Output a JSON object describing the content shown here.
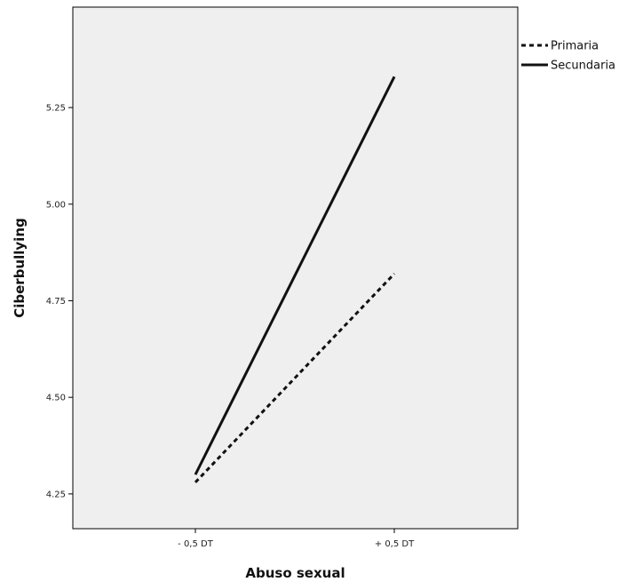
{
  "chart_data": {
    "type": "line",
    "title": "",
    "xlabel": "Abuso sexual",
    "ylabel": "Ciberbullying",
    "categories": [
      "- 0,5 DT",
      "+ 0,5 DT"
    ],
    "y_ticks": [
      4.25,
      4.5,
      4.75,
      5.0,
      5.25
    ],
    "y_tick_labels": [
      "4.25",
      "4.50",
      "4.75",
      "5.00",
      "5.25"
    ],
    "ylim": [
      4.16,
      5.51
    ],
    "grid": false,
    "legend_position": "top-right",
    "series": [
      {
        "name": "Primaria",
        "values": [
          4.28,
          4.82
        ],
        "line_style": "dashed",
        "color": "#111111"
      },
      {
        "name": "Secundaria",
        "values": [
          4.3,
          5.33
        ],
        "line_style": "solid",
        "color": "#111111"
      }
    ],
    "plot_background": "#efefef"
  }
}
